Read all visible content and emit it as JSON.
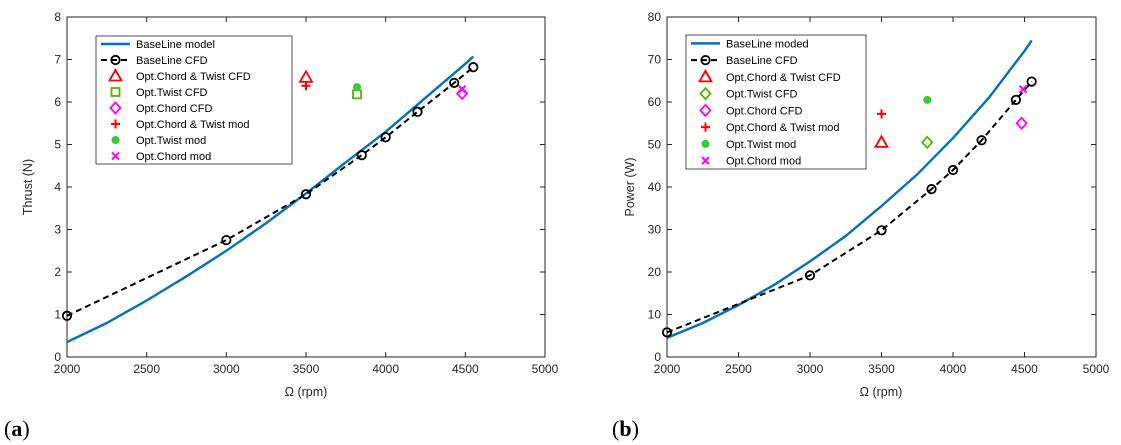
{
  "colors": {
    "baseline_model": "#0072BD",
    "baseline_cfd": "#000000",
    "opt_chord_twist": "#FF0000",
    "opt_twist_cfd": "#4FB800",
    "opt_chord": "#FF00FF",
    "opt_twist_mod": "#33CC33"
  },
  "panels": [
    {
      "label_open": "(",
      "label_letter": "a",
      "label_close": ")"
    },
    {
      "label_open": "(",
      "label_letter": "b",
      "label_close": ")"
    }
  ],
  "chart_data": [
    {
      "type": "line",
      "xlabel": "Ω (rpm)",
      "ylabel": "Thrust (N)",
      "xlim": [
        2000,
        5000
      ],
      "ylim": [
        0,
        8
      ],
      "xticks": [
        2000,
        2500,
        3000,
        3500,
        4000,
        4500,
        5000
      ],
      "yticks": [
        0,
        1,
        2,
        3,
        4,
        5,
        6,
        7,
        8
      ],
      "legend_position": "top-left",
      "series": [
        {
          "name": "BaseLine model",
          "style": "line",
          "x": [
            2000,
            2250,
            2500,
            2750,
            3000,
            3250,
            3500,
            3750,
            4000,
            4250,
            4500,
            4550
          ],
          "y": [
            0.35,
            0.8,
            1.33,
            1.9,
            2.5,
            3.15,
            3.85,
            4.58,
            5.3,
            6.1,
            6.9,
            7.07
          ]
        },
        {
          "name": "BaseLine CFD",
          "style": "dashed-circle",
          "x": [
            2000,
            3000,
            3500,
            3850,
            4000,
            4200,
            4430,
            4550
          ],
          "y": [
            0.97,
            2.75,
            3.83,
            4.75,
            5.17,
            5.77,
            6.45,
            6.82
          ]
        },
        {
          "name": "Opt.Chord & Twist CFD",
          "style": "triangle",
          "x": [
            3500
          ],
          "y": [
            6.58
          ]
        },
        {
          "name": "Opt.Twist CFD",
          "style": "square",
          "x": [
            3820
          ],
          "y": [
            6.18
          ]
        },
        {
          "name": "Opt.Chord CFD",
          "style": "diamond",
          "x": [
            4480
          ],
          "y": [
            6.2
          ]
        },
        {
          "name": "Opt.Chord & Twist mod",
          "style": "plus",
          "x": [
            3500
          ],
          "y": [
            6.38
          ]
        },
        {
          "name": "Opt.Twist mod",
          "style": "dot",
          "x": [
            3820
          ],
          "y": [
            6.35
          ]
        },
        {
          "name": "Opt.Chord mod",
          "style": "x",
          "x": [
            4480
          ],
          "y": [
            6.3
          ]
        }
      ]
    },
    {
      "type": "line",
      "xlabel": "Ω (rpm)",
      "ylabel": "Power (W)",
      "xlim": [
        2000,
        5000
      ],
      "ylim": [
        0,
        80
      ],
      "xticks": [
        2000,
        2500,
        3000,
        3500,
        4000,
        4500,
        5000
      ],
      "yticks": [
        0,
        10,
        20,
        30,
        40,
        50,
        60,
        70,
        80
      ],
      "legend_position": "top-left",
      "series": [
        {
          "name": "BaseLine moded",
          "style": "line",
          "x": [
            2000,
            2250,
            2500,
            2750,
            3000,
            3250,
            3500,
            3750,
            4000,
            4250,
            4500,
            4550
          ],
          "y": [
            4.5,
            8.0,
            12.2,
            17.0,
            22.5,
            28.5,
            35.5,
            43.0,
            51.5,
            61.0,
            72.0,
            74.5
          ]
        },
        {
          "name": "BaseLine CFD",
          "style": "dashed-circle",
          "x": [
            2000,
            3000,
            3500,
            3850,
            4000,
            4200,
            4440,
            4550
          ],
          "y": [
            5.8,
            19.2,
            29.8,
            39.5,
            44.0,
            51.0,
            60.5,
            64.8
          ]
        },
        {
          "name": "Opt.Chord & Twist CFD",
          "style": "triangle",
          "x": [
            3500
          ],
          "y": [
            50.5
          ]
        },
        {
          "name": "Opt.Twist CFD",
          "style": "diamond-green",
          "x": [
            3820
          ],
          "y": [
            50.5
          ]
        },
        {
          "name": "Opt.Chord CFD",
          "style": "diamond",
          "x": [
            4480
          ],
          "y": [
            55.0
          ]
        },
        {
          "name": "Opt.Chord & Twist mod",
          "style": "plus",
          "x": [
            3500
          ],
          "y": [
            57.2
          ]
        },
        {
          "name": "Opt.Twist mod",
          "style": "dot",
          "x": [
            3820
          ],
          "y": [
            60.5
          ]
        },
        {
          "name": "Opt.Chord mod",
          "style": "x",
          "x": [
            4490
          ],
          "y": [
            63.0
          ]
        }
      ]
    }
  ]
}
